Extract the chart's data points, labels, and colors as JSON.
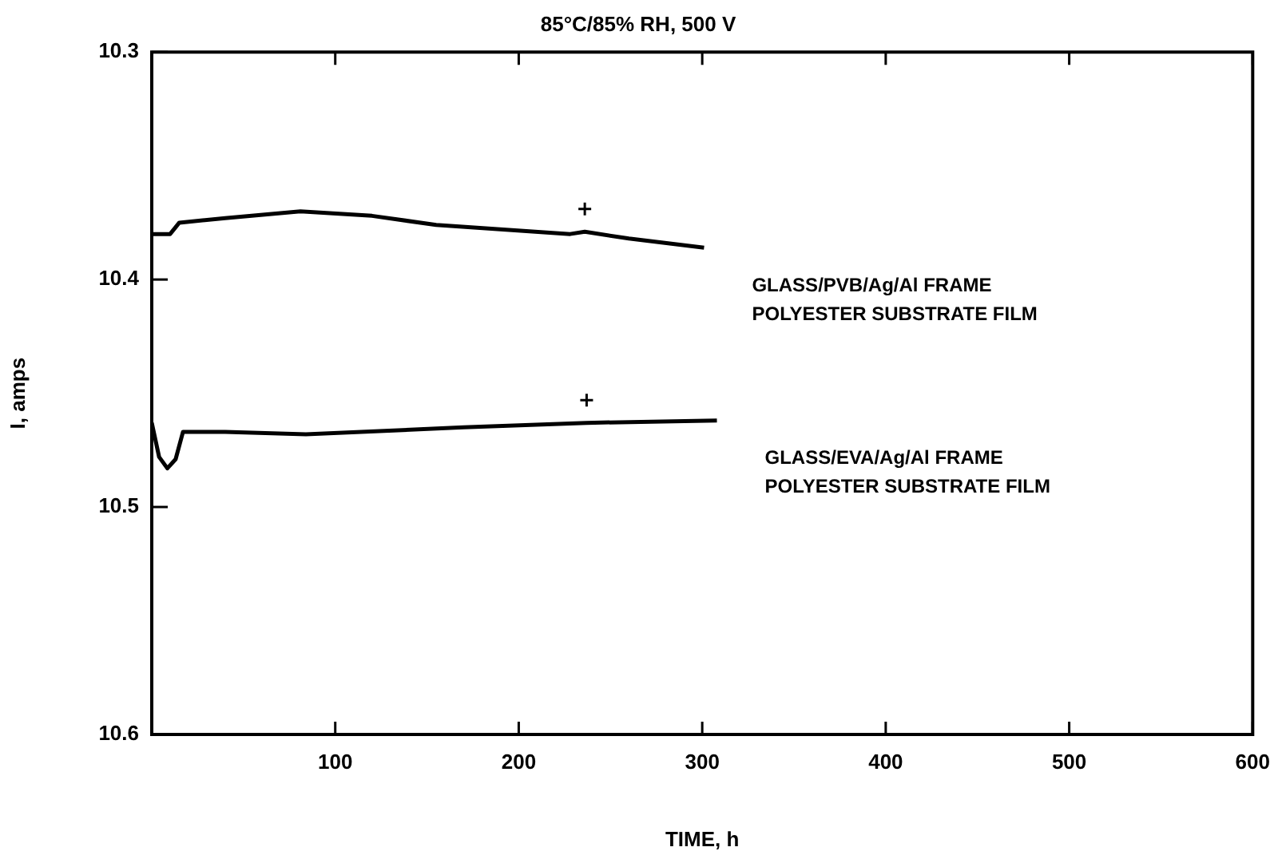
{
  "chart_data": {
    "type": "line",
    "title": "85°C/85% RH, 500 V",
    "xlabel": "TIME, h",
    "ylabel": "I, amps",
    "xlim": [
      0,
      600
    ],
    "xticks": [
      100,
      200,
      300,
      400,
      500,
      600
    ],
    "ylim": [
      10.6,
      10.3
    ],
    "yticks": [
      10.3,
      10.4,
      10.5,
      10.6
    ],
    "grid": false,
    "legend": false,
    "marker": "none",
    "line_style": "solid",
    "series": [
      {
        "name": "GLASS/PVB/Ag/Al FRAME\nPOLYESTER SUBSTRATE FILM",
        "color": "#000000",
        "x": [
          0,
          10,
          13,
          15,
          40,
          81,
          120,
          155,
          228,
          236,
          260,
          301
        ],
        "values": [
          10.38,
          10.38,
          10.377,
          10.375,
          10.373,
          10.37,
          10.372,
          10.376,
          10.38,
          10.379,
          10.382,
          10.386
        ]
      },
      {
        "name": "GLASS/EVA/Ag/Al FRAME\nPOLYESTER SUBSTRATE FILM",
        "color": "#000000",
        "x": [
          0,
          4,
          8.5,
          13,
          17,
          40,
          84,
          170,
          237,
          308
        ],
        "values": [
          10.463,
          10.478,
          10.483,
          10.479,
          10.467,
          10.467,
          10.468,
          10.465,
          10.463,
          10.462
        ]
      },
      {
        "type": "scatter",
        "marker": "cross",
        "color": "#000000",
        "x": [
          236,
          237
        ],
        "values": [
          10.369,
          10.453
        ]
      }
    ]
  }
}
